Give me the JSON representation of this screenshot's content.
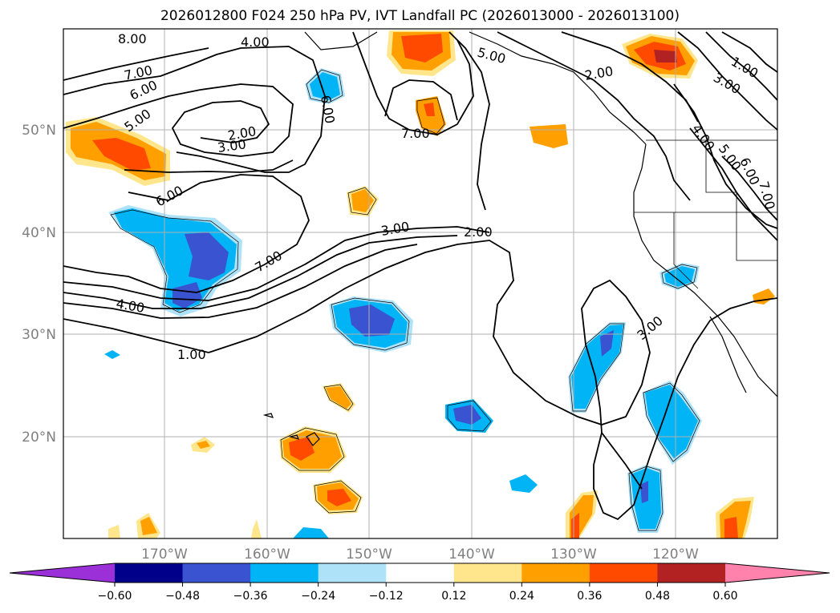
{
  "title": "2026012800 F024 250 hPa PV, IVT Landfall PC (2026013000 - 2026013100)",
  "map": {
    "lat_labels": [
      "50°N",
      "40°N",
      "30°N",
      "20°N"
    ],
    "lon_labels": [
      "170°W",
      "160°W",
      "150°W",
      "140°W",
      "130°W",
      "120°W"
    ],
    "contour_labels": [
      "8.00",
      "7.00",
      "6.00",
      "5.00",
      "4.00",
      "6.00",
      "2.00",
      "3.00",
      "6.00",
      "7.00",
      "4.00",
      "1.00",
      "7.00",
      "5.00",
      "2.00",
      "3.00",
      "2.00",
      "1.00",
      "3.00",
      "4.00",
      "5.00",
      "6.00",
      "7.00",
      "3.00"
    ]
  },
  "colorbar": {
    "ticks": [
      "−0.60",
      "−0.48",
      "−0.36",
      "−0.24",
      "−0.12",
      "0.12",
      "0.24",
      "0.36",
      "0.48",
      "0.60"
    ],
    "colors": [
      "#9b30d9",
      "#00008b",
      "#3a53d0",
      "#00b4f5",
      "#aee2f8",
      "#ffffff",
      "#ffe68c",
      "#ffa000",
      "#ff4a00",
      "#b22222",
      "#ff82ac"
    ]
  },
  "colors": {
    "neg_light": "#aee2f8",
    "neg_mid": "#00b4f5",
    "neg_strong": "#3a53d0",
    "pos_light": "#ffe68c",
    "pos_mid": "#ffa000",
    "pos_strong": "#ff4a00",
    "pos_max": "#b22222"
  }
}
